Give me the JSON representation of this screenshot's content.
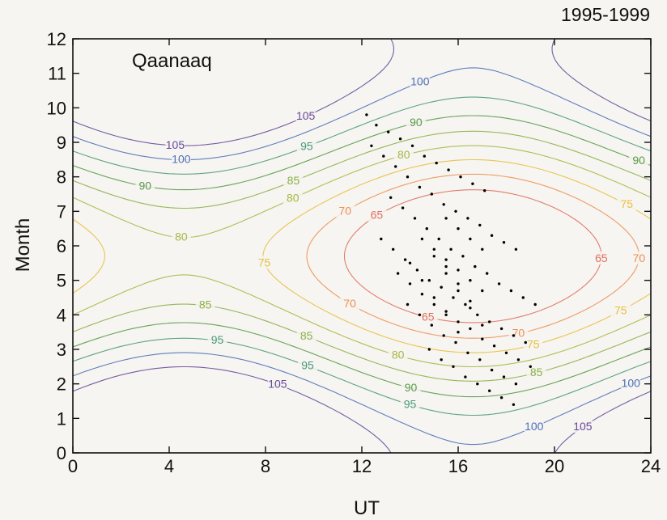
{
  "chart_data": {
    "type": "scatter",
    "title": "1995-1999",
    "annotation": "Qaanaaq",
    "xlabel": "UT",
    "ylabel": "Month",
    "xlim": [
      0,
      24
    ],
    "ylim": [
      0,
      12
    ],
    "x_ticks": [
      0,
      4,
      8,
      12,
      16,
      20,
      24
    ],
    "y_ticks": [
      0,
      1,
      2,
      3,
      4,
      5,
      6,
      7,
      8,
      9,
      10,
      11,
      12
    ],
    "grid": false,
    "contours": {
      "levels": [
        65,
        70,
        75,
        80,
        85,
        90,
        95,
        100,
        105
      ],
      "colors": {
        "65": "#e07060",
        "70": "#ee9055",
        "75": "#e8c040",
        "80": "#a8b845",
        "85": "#8cb048",
        "90": "#5a9a48",
        "95": "#4c9a78",
        "100": "#5070b8",
        "105": "#6a4a9a"
      }
    },
    "series": [
      {
        "points": [
          [
            12.2,
            9.8
          ],
          [
            12.6,
            9.5
          ],
          [
            13.1,
            9.3
          ],
          [
            13.6,
            9.1
          ],
          [
            14.1,
            8.9
          ],
          [
            14.6,
            8.6
          ],
          [
            15.1,
            8.4
          ],
          [
            15.6,
            8.2
          ],
          [
            16.1,
            8.0
          ],
          [
            16.6,
            7.8
          ],
          [
            17.1,
            7.6
          ],
          [
            12.4,
            8.9
          ],
          [
            12.9,
            8.6
          ],
          [
            13.4,
            8.3
          ],
          [
            13.9,
            8.0
          ],
          [
            14.4,
            7.7
          ],
          [
            14.9,
            7.5
          ],
          [
            15.4,
            7.2
          ],
          [
            15.9,
            7.0
          ],
          [
            16.4,
            6.8
          ],
          [
            16.9,
            6.6
          ],
          [
            17.4,
            6.3
          ],
          [
            17.9,
            6.1
          ],
          [
            18.4,
            5.9
          ],
          [
            13.2,
            7.4
          ],
          [
            13.7,
            7.1
          ],
          [
            14.2,
            6.8
          ],
          [
            14.7,
            6.5
          ],
          [
            15.2,
            6.2
          ],
          [
            15.7,
            5.9
          ],
          [
            16.2,
            5.7
          ],
          [
            16.7,
            5.4
          ],
          [
            17.2,
            5.2
          ],
          [
            17.7,
            4.9
          ],
          [
            18.2,
            4.7
          ],
          [
            18.7,
            4.5
          ],
          [
            19.2,
            4.3
          ],
          [
            12.8,
            6.2
          ],
          [
            13.3,
            5.9
          ],
          [
            13.8,
            5.6
          ],
          [
            14.3,
            5.3
          ],
          [
            14.8,
            5.0
          ],
          [
            15.3,
            4.8
          ],
          [
            15.8,
            4.5
          ],
          [
            16.3,
            4.3
          ],
          [
            16.8,
            4.0
          ],
          [
            17.3,
            3.8
          ],
          [
            17.8,
            3.6
          ],
          [
            18.3,
            3.4
          ],
          [
            18.8,
            3.2
          ],
          [
            13.5,
            5.2
          ],
          [
            14.0,
            4.9
          ],
          [
            14.5,
            4.6
          ],
          [
            15.0,
            4.3
          ],
          [
            15.5,
            4.1
          ],
          [
            16.0,
            3.8
          ],
          [
            16.5,
            3.6
          ],
          [
            17.0,
            3.3
          ],
          [
            17.5,
            3.1
          ],
          [
            18.0,
            2.9
          ],
          [
            18.5,
            2.7
          ],
          [
            19.0,
            2.5
          ],
          [
            13.9,
            4.3
          ],
          [
            14.4,
            4.0
          ],
          [
            14.9,
            3.7
          ],
          [
            15.4,
            3.4
          ],
          [
            15.9,
            3.2
          ],
          [
            16.4,
            2.9
          ],
          [
            16.9,
            2.7
          ],
          [
            17.4,
            2.4
          ],
          [
            17.9,
            2.2
          ],
          [
            18.4,
            2.0
          ],
          [
            14.8,
            3.0
          ],
          [
            15.3,
            2.7
          ],
          [
            15.8,
            2.5
          ],
          [
            16.3,
            2.2
          ],
          [
            16.8,
            2.0
          ],
          [
            17.3,
            1.8
          ],
          [
            17.8,
            1.6
          ],
          [
            18.3,
            1.4
          ],
          [
            15.5,
            6.8
          ],
          [
            16.0,
            6.5
          ],
          [
            16.5,
            6.2
          ],
          [
            17.0,
            5.9
          ],
          [
            15.5,
            5.6
          ],
          [
            16.0,
            5.3
          ],
          [
            16.5,
            5.0
          ],
          [
            17.0,
            4.7
          ],
          [
            15.0,
            5.9
          ],
          [
            15.5,
            5.4
          ],
          [
            16.0,
            4.9
          ],
          [
            16.5,
            4.4
          ],
          [
            14.5,
            6.2
          ],
          [
            15.0,
            5.7
          ],
          [
            15.5,
            5.2
          ],
          [
            16.0,
            4.7
          ],
          [
            16.5,
            4.2
          ],
          [
            17.0,
            3.7
          ],
          [
            14.0,
            5.5
          ],
          [
            14.5,
            5.0
          ],
          [
            15.0,
            4.5
          ],
          [
            15.5,
            4.0
          ],
          [
            16.0,
            3.5
          ]
        ]
      }
    ]
  }
}
